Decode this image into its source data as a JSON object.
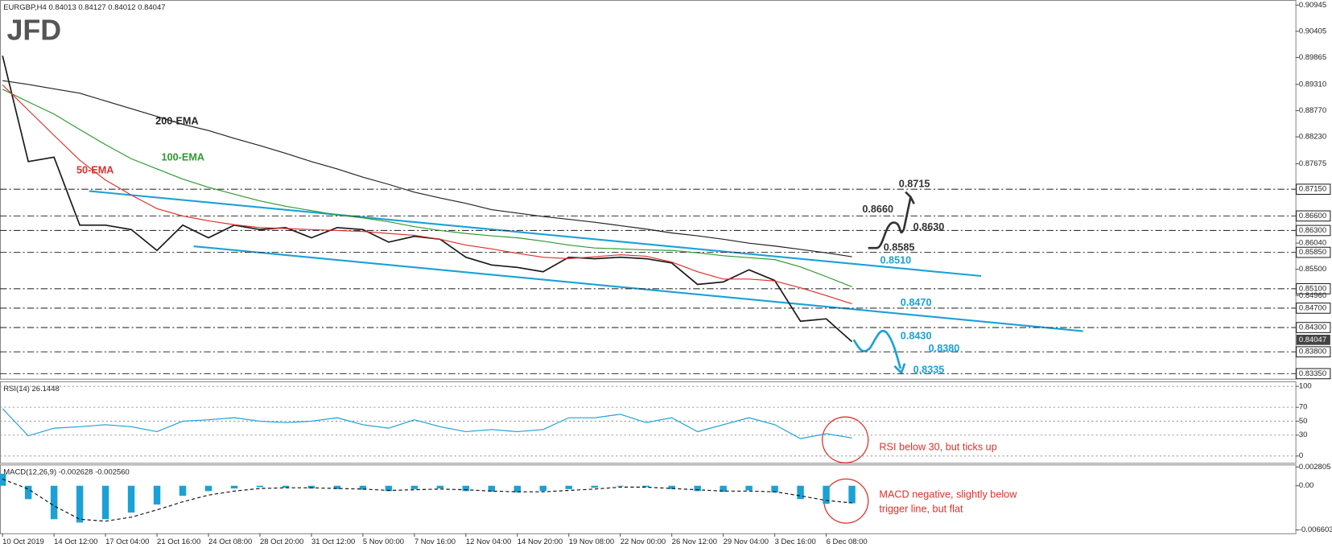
{
  "logo": "JFD",
  "chart_data": [
    {
      "type": "line",
      "title": "EURGBP,H4  0.84013 0.84127 0.84012 0.84047",
      "categories": [
        "10 Oct 2019",
        null,
        "14 Oct 12:00",
        null,
        "17 Oct 04:00",
        null,
        "21 Oct 16:00",
        null,
        "24 Oct 08:00",
        null,
        "28 Oct 20:00",
        null,
        "31 Oct 12:00",
        null,
        "5 Nov 00:00",
        null,
        "7 Nov 16:00",
        null,
        "12 Nov 04:00",
        null,
        "14 Nov 20:00",
        null,
        "19 Nov 08:00",
        null,
        "22 Nov 00:00",
        null,
        "26 Nov 12:00",
        null,
        "29 Nov 04:00",
        null,
        "3 Dec 16:00",
        null,
        "6 Dec 08:00",
        null
      ],
      "series": [
        {
          "color": "#1a1a1a",
          "values": [
            0.899,
            0.8772,
            0.8781,
            0.8641,
            0.8641,
            0.8632,
            0.8589,
            0.8641,
            0.8615,
            0.8641,
            0.8632,
            0.8636,
            0.8615,
            0.8636,
            0.8632,
            0.8606,
            0.8618,
            0.8612,
            0.8575,
            0.8559,
            0.8554,
            0.8545,
            0.8575,
            0.8572,
            0.8575,
            0.8572,
            0.8563,
            0.8519,
            0.8524,
            0.8549,
            0.8527,
            0.8443,
            0.8448,
            0.8401
          ]
        },
        {
          "name": "200-EMA",
          "color": "#222222",
          "values": [
            0.8939,
            0.8931,
            0.8922,
            0.8913,
            0.8897,
            0.8881,
            0.8865,
            0.8849,
            0.8836,
            0.882,
            0.8805,
            0.8789,
            0.8772,
            0.8757,
            0.874,
            0.8725,
            0.8709,
            0.8697,
            0.8686,
            0.8673,
            0.8666,
            0.8659,
            0.8653,
            0.8647,
            0.864,
            0.8633,
            0.8625,
            0.8619,
            0.8612,
            0.8604,
            0.8598,
            0.8591,
            0.8584,
            0.8576
          ]
        },
        {
          "name": "100-EMA",
          "color": "#2e9a2e",
          "values": [
            0.8921,
            0.8895,
            0.887,
            0.8838,
            0.8807,
            0.8778,
            0.8757,
            0.8736,
            0.8719,
            0.8705,
            0.8691,
            0.868,
            0.8671,
            0.8662,
            0.8656,
            0.8648,
            0.8638,
            0.863,
            0.8624,
            0.8619,
            0.8615,
            0.8608,
            0.86,
            0.8594,
            0.8592,
            0.859,
            0.8589,
            0.8584,
            0.8578,
            0.8574,
            0.857,
            0.8555,
            0.8535,
            0.8514
          ]
        },
        {
          "name": "50-EMA",
          "color": "#e0302a",
          "values": [
            0.893,
            0.8878,
            0.8826,
            0.8775,
            0.8734,
            0.8703,
            0.8675,
            0.866,
            0.865,
            0.8642,
            0.8636,
            0.8634,
            0.8632,
            0.863,
            0.8628,
            0.8624,
            0.862,
            0.8612,
            0.86,
            0.8592,
            0.8583,
            0.8575,
            0.8572,
            0.8576,
            0.858,
            0.8577,
            0.8565,
            0.8545,
            0.853,
            0.853,
            0.8526,
            0.8512,
            0.8496,
            0.8479
          ]
        }
      ],
      "ylim": [
        0.83245,
        0.9105
      ],
      "yticks": [
        {
          "value": 0.90945,
          "label": "0.90945"
        },
        {
          "value": 0.90405,
          "label": "0.90405"
        },
        {
          "value": 0.89865,
          "label": "0.89865"
        },
        {
          "value": 0.8931,
          "label": "0.89310"
        },
        {
          "value": 0.8877,
          "label": "0.88770"
        },
        {
          "value": 0.8823,
          "label": "0.88230"
        },
        {
          "value": 0.87675,
          "label": "0.87675"
        },
        {
          "value": 0.8715,
          "label": "0.87150"
        },
        {
          "value": 0.866,
          "label": "0.86600"
        },
        {
          "value": 0.863,
          "label": "0.86300"
        },
        {
          "value": 0.8604,
          "label": "0.86040"
        },
        {
          "value": 0.8585,
          "label": "0.85850"
        },
        {
          "value": 0.855,
          "label": "0.85500"
        },
        {
          "value": 0.851,
          "label": "0.85100"
        },
        {
          "value": 0.8496,
          "label": "0.84960"
        },
        {
          "value": 0.847,
          "label": "0.84700"
        },
        {
          "value": 0.843,
          "label": "0.84300"
        },
        {
          "value": 0.838,
          "label": "0.83800"
        },
        {
          "value": 0.8335,
          "label": "0.83350"
        }
      ],
      "last_price": {
        "value": 0.84047,
        "label": "0.84047"
      },
      "levels": [
        {
          "value": 0.8715,
          "label": "0.8715",
          "color": "#333333"
        },
        {
          "value": 0.866,
          "label": "0.8660",
          "color": "#333333"
        },
        {
          "value": 0.863,
          "label": "0.8630",
          "color": "#333333"
        },
        {
          "value": 0.8585,
          "label": "0.8585",
          "color": "#333333"
        },
        {
          "value": 0.851,
          "label": "0.8510",
          "color": "#1ba1d6"
        },
        {
          "value": 0.847,
          "label": "0.8470",
          "color": "#1ba1d6"
        },
        {
          "value": 0.843,
          "label": "0.8430",
          "color": "#1ba1d6"
        },
        {
          "value": 0.838,
          "label": "0.8380",
          "color": "#1ba1d6"
        },
        {
          "value": 0.8335,
          "label": "0.8335",
          "color": "#1ba1d6"
        }
      ]
    },
    {
      "type": "line",
      "title": "RSI(14) 26.1448",
      "series": [
        {
          "color": "#1ba1d6",
          "values": [
            68,
            29,
            40,
            42,
            45,
            42,
            35,
            50,
            52,
            55,
            50,
            48,
            50,
            55,
            45,
            40,
            52,
            42,
            35,
            38,
            35,
            38,
            55,
            55,
            60,
            48,
            55,
            35,
            45,
            55,
            45,
            25,
            32,
            26
          ]
        }
      ],
      "ylim": [
        -9.8,
        107.3
      ],
      "yticks": [
        0,
        30,
        50,
        70,
        100
      ],
      "grid": true,
      "annotation": "RSI below 30, but ticks up"
    },
    {
      "type": "bar",
      "title": "MACD(12,26,9) -0.002628 -0.002560",
      "series": [
        {
          "color": "#1ba1d6",
          "values": [
            0.0018,
            -0.002,
            -0.005,
            -0.0055,
            -0.005,
            -0.004,
            -0.0028,
            -0.0015,
            -0.0008,
            -0.0004,
            -0.0002,
            -0.0003,
            -0.0004,
            -0.0005,
            -0.0006,
            -0.0008,
            -0.0005,
            -0.0004,
            -0.0008,
            -0.0009,
            -0.001,
            -0.0008,
            -0.0005,
            -0.0003,
            -0.0001,
            -0.0002,
            -0.0005,
            -0.0008,
            -0.0009,
            -0.0007,
            -0.001,
            -0.002,
            -0.0027,
            -0.002628
          ]
        },
        {
          "type": "line",
          "color": "#111111",
          "dashed": true,
          "values": [
            0.001,
            -0.0005,
            -0.003,
            -0.005,
            -0.0053,
            -0.0047,
            -0.0036,
            -0.0024,
            -0.0014,
            -0.0008,
            -0.0004,
            -0.0003,
            -0.0003,
            -0.0004,
            -0.0005,
            -0.0007,
            -0.0006,
            -0.0005,
            -0.0006,
            -0.0008,
            -0.0009,
            -0.0009,
            -0.0007,
            -0.0005,
            -0.0002,
            -0.0002,
            -0.0004,
            -0.0006,
            -0.0008,
            -0.0008,
            -0.0009,
            -0.0015,
            -0.0022,
            -0.00256
          ]
        }
      ],
      "ylim": [
        -0.00711,
        0.003175
      ],
      "yticks": [
        {
          "value": -0.006603,
          "label": "-0.006603"
        },
        {
          "value": 0,
          "label": "0.00"
        },
        0.002805
      ],
      "annotation": [
        "MACD negative, slightly below",
        "trigger line, but flat"
      ]
    }
  ]
}
